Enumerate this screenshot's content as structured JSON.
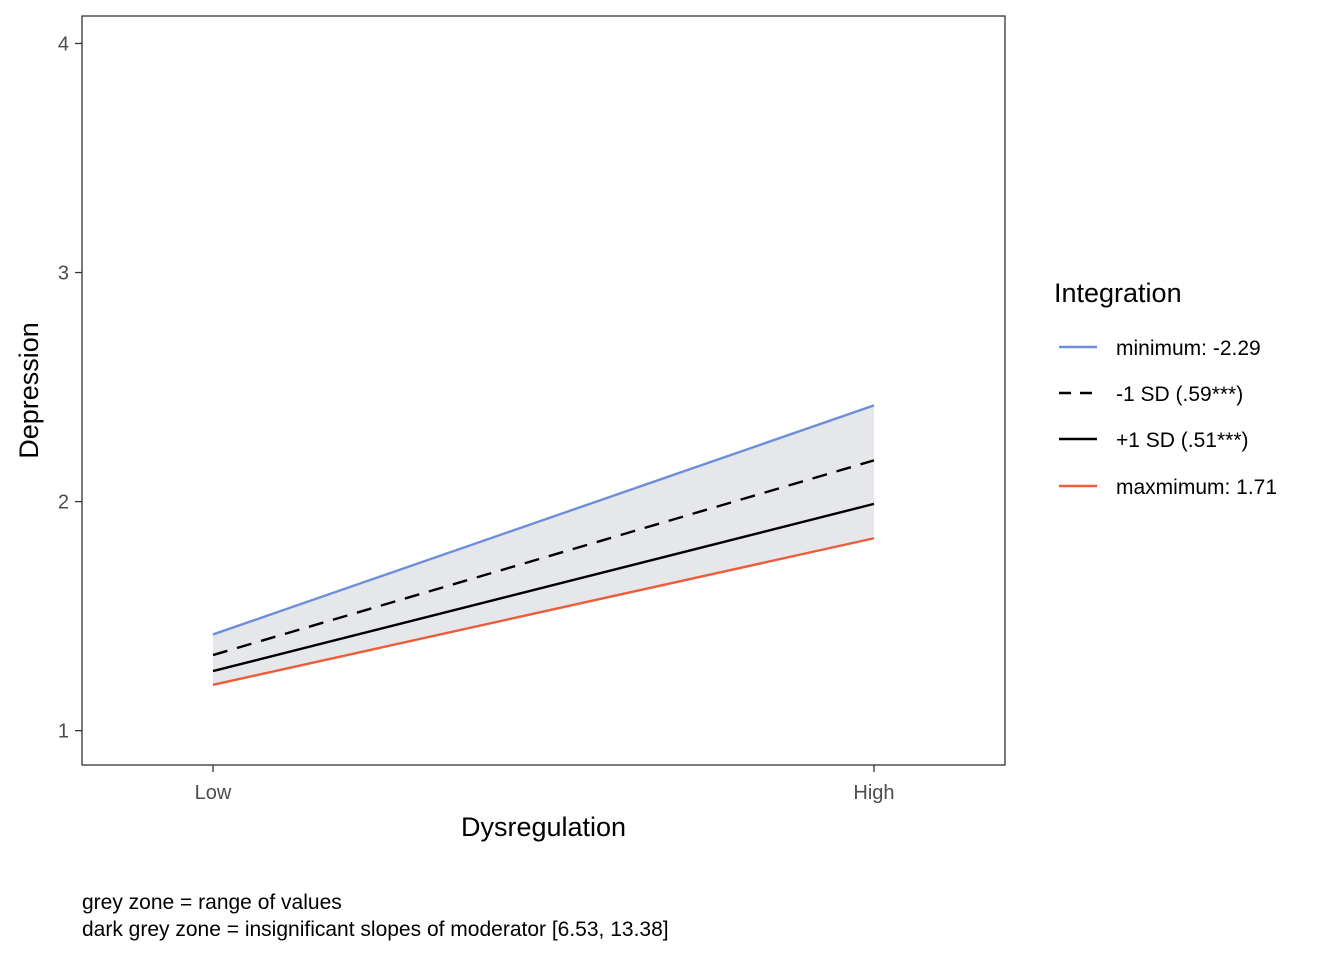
{
  "chart_data": {
    "type": "line",
    "title": "",
    "xlabel": "Dysregulation",
    "ylabel": "Depression",
    "categories": [
      "Low",
      "High"
    ],
    "ylim": [
      0.85,
      4.12
    ],
    "yticks": [
      1,
      2,
      3,
      4
    ],
    "grid": false,
    "legend": {
      "title": "Integration",
      "position": "right"
    },
    "band": {
      "description": "range of values",
      "lower": [
        1.2,
        1.84
      ],
      "upper": [
        1.42,
        2.42
      ],
      "color": "#E6E7EA"
    },
    "series": [
      {
        "name": "minimum: -2.29",
        "values": [
          1.42,
          2.42
        ],
        "color": "#6C8EDB",
        "dash": "solid"
      },
      {
        "name": "-1 SD (.59***)",
        "values": [
          1.33,
          2.18
        ],
        "color": "#000000",
        "dash": "dashed"
      },
      {
        "name": "+1 SD (.51***)",
        "values": [
          1.26,
          1.99
        ],
        "color": "#000000",
        "dash": "solid"
      },
      {
        "name": "maxmimum: 1.71",
        "values": [
          1.2,
          1.84
        ],
        "color": "#EE5C3A",
        "dash": "solid"
      }
    ]
  },
  "caption": {
    "line1": "grey zone = range of values",
    "line2": "dark grey zone = insignificant slopes of moderator [6.53, 13.38]"
  }
}
